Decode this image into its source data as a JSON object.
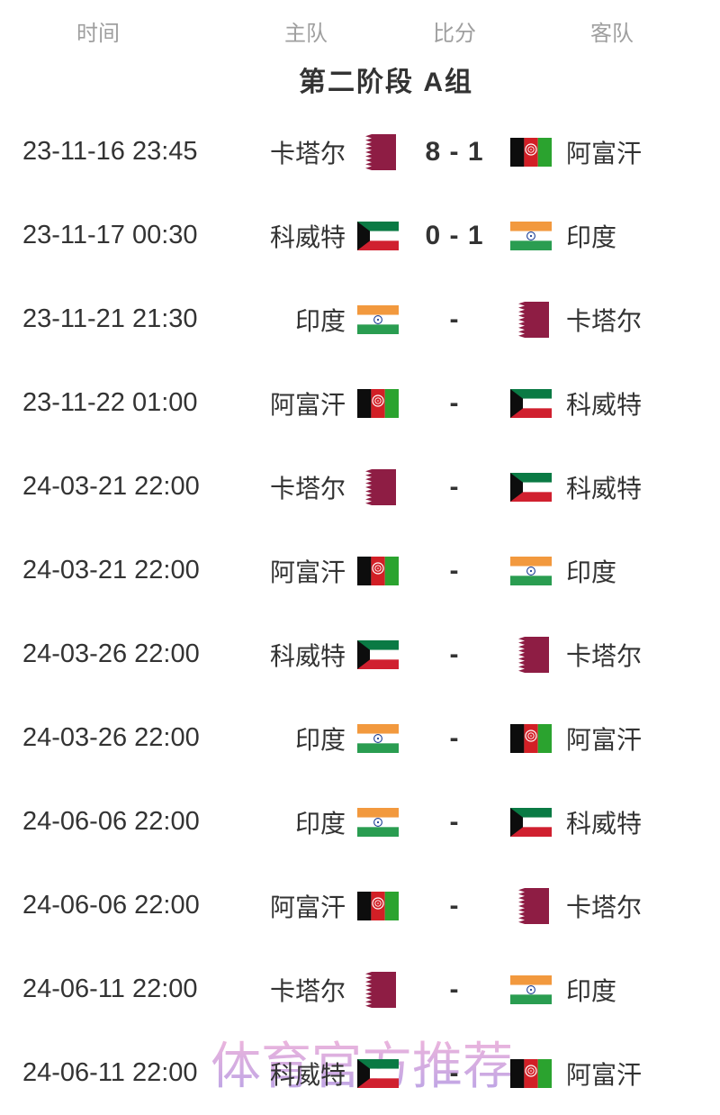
{
  "theme": {
    "text": "#333333",
    "muted": "#9f9f9f",
    "watermark_pink": "#efb6dc",
    "watermark_purple": "#b9a3e6"
  },
  "watermark": {
    "text": "体育官方推荐"
  },
  "table": {
    "headers": {
      "time": "时间",
      "home": "主队",
      "score": "比分",
      "away": "客队"
    },
    "section_title": "第二阶段 A组",
    "matches": [
      {
        "time": "23-11-16 23:45",
        "home": "卡塔尔",
        "home_flag": "qatar",
        "score": "8 - 1",
        "away_flag": "afghanistan",
        "away": "阿富汗"
      },
      {
        "time": "23-11-17 00:30",
        "home": "科威特",
        "home_flag": "kuwait",
        "score": "0 - 1",
        "away_flag": "india",
        "away": "印度"
      },
      {
        "time": "23-11-21 21:30",
        "home": "印度",
        "home_flag": "india",
        "score": "-",
        "away_flag": "qatar",
        "away": "卡塔尔"
      },
      {
        "time": "23-11-22 01:00",
        "home": "阿富汗",
        "home_flag": "afghanistan",
        "score": "-",
        "away_flag": "kuwait",
        "away": "科威特"
      },
      {
        "time": "24-03-21 22:00",
        "home": "卡塔尔",
        "home_flag": "qatar",
        "score": "-",
        "away_flag": "kuwait",
        "away": "科威特"
      },
      {
        "time": "24-03-21 22:00",
        "home": "阿富汗",
        "home_flag": "afghanistan",
        "score": "-",
        "away_flag": "india",
        "away": "印度"
      },
      {
        "time": "24-03-26 22:00",
        "home": "科威特",
        "home_flag": "kuwait",
        "score": "-",
        "away_flag": "qatar",
        "away": "卡塔尔"
      },
      {
        "time": "24-03-26 22:00",
        "home": "印度",
        "home_flag": "india",
        "score": "-",
        "away_flag": "afghanistan",
        "away": "阿富汗"
      },
      {
        "time": "24-06-06 22:00",
        "home": "印度",
        "home_flag": "india",
        "score": "-",
        "away_flag": "kuwait",
        "away": "科威特"
      },
      {
        "time": "24-06-06 22:00",
        "home": "阿富汗",
        "home_flag": "afghanistan",
        "score": "-",
        "away_flag": "qatar",
        "away": "卡塔尔"
      },
      {
        "time": "24-06-11 22:00",
        "home": "卡塔尔",
        "home_flag": "qatar",
        "score": "-",
        "away_flag": "india",
        "away": "印度"
      },
      {
        "time": "24-06-11 22:00",
        "home": "科威特",
        "home_flag": "kuwait",
        "score": "-",
        "away_flag": "afghanistan",
        "away": "阿富汗"
      }
    ]
  },
  "flags": {
    "qatar": {
      "team": "卡塔尔",
      "colors": {
        "maroon": "#8e1d44",
        "white": "#ffffff"
      }
    },
    "kuwait": {
      "team": "科威特",
      "colors": {
        "green": "#0a7a44",
        "white": "#ffffff",
        "red": "#d0202f",
        "black": "#0d0d0d"
      }
    },
    "india": {
      "team": "印度",
      "colors": {
        "saffron": "#f2993e",
        "white": "#ffffff",
        "green": "#2a9d51",
        "navy": "#1c3e94"
      }
    },
    "afghanistan": {
      "team": "阿富汗",
      "colors": {
        "black": "#0d0d0d",
        "red": "#d21f26",
        "green": "#2ba32f",
        "white": "#ffffff"
      }
    }
  }
}
